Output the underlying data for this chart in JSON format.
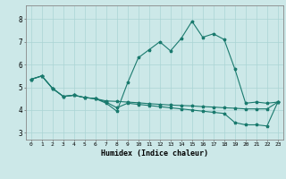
{
  "title": "",
  "xlabel": "Humidex (Indice chaleur)",
  "bg_color": "#cce8e8",
  "line_color": "#1a7a6e",
  "grid_color": "#aad4d4",
  "xlim": [
    -0.5,
    23.5
  ],
  "ylim": [
    2.7,
    8.6
  ],
  "xticks": [
    0,
    1,
    2,
    3,
    4,
    5,
    6,
    7,
    8,
    9,
    10,
    11,
    12,
    13,
    14,
    15,
    16,
    17,
    18,
    19,
    20,
    21,
    22,
    23
  ],
  "yticks": [
    3,
    4,
    5,
    6,
    7,
    8
  ],
  "line1_x": [
    0,
    1,
    2,
    3,
    4,
    5,
    6,
    7,
    8,
    9,
    10,
    11,
    12,
    13,
    14,
    15,
    16,
    17,
    18,
    19,
    20,
    21,
    22,
    23
  ],
  "line1_y": [
    5.35,
    5.5,
    4.95,
    4.6,
    4.65,
    4.55,
    4.5,
    4.3,
    3.95,
    5.2,
    6.3,
    6.65,
    7.0,
    6.6,
    7.15,
    7.9,
    7.2,
    7.35,
    7.1,
    5.8,
    4.3,
    4.35,
    4.3,
    4.35
  ],
  "line2_x": [
    0,
    1,
    2,
    3,
    4,
    5,
    6,
    7,
    8,
    9,
    10,
    11,
    12,
    13,
    14,
    15,
    16,
    17,
    18,
    19,
    20,
    21,
    22,
    23
  ],
  "line2_y": [
    5.35,
    5.5,
    4.95,
    4.6,
    4.65,
    4.55,
    4.5,
    4.4,
    4.38,
    4.35,
    4.32,
    4.28,
    4.25,
    4.22,
    4.2,
    4.18,
    4.15,
    4.13,
    4.1,
    4.08,
    4.05,
    4.05,
    4.05,
    4.35
  ],
  "line3_x": [
    0,
    1,
    2,
    3,
    4,
    5,
    6,
    7,
    8,
    9,
    10,
    11,
    12,
    13,
    14,
    15,
    16,
    17,
    18,
    19,
    20,
    21,
    22,
    23
  ],
  "line3_y": [
    5.35,
    5.5,
    4.95,
    4.6,
    4.65,
    4.55,
    4.5,
    4.35,
    4.1,
    4.3,
    4.25,
    4.2,
    4.15,
    4.1,
    4.05,
    4.0,
    3.95,
    3.9,
    3.85,
    3.45,
    3.35,
    3.35,
    3.3,
    4.35
  ]
}
